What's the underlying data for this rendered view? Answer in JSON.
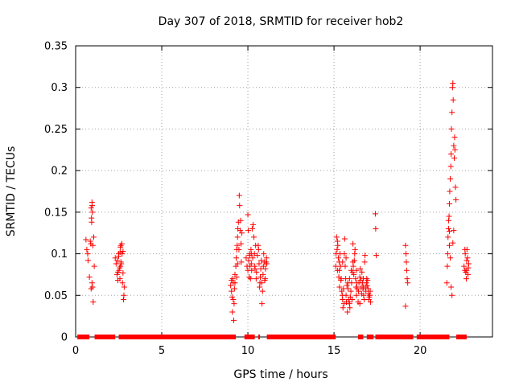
{
  "chart_data": {
    "type": "scatter",
    "title": "Day 307 of 2018, SRMTID for receiver hob2",
    "xlabel": "GPS time / hours",
    "ylabel": "SRMTID / TECUs",
    "xlim": [
      0,
      24.2
    ],
    "ylim": [
      0,
      0.35
    ],
    "grid": true,
    "x_ticks": [
      0,
      5,
      10,
      15,
      20
    ],
    "x_tick_labels": [
      "0",
      "5",
      "10",
      "15",
      "20"
    ],
    "y_ticks": [
      0,
      0.05,
      0.1,
      0.15,
      0.2,
      0.25,
      0.3,
      0.35
    ],
    "y_tick_labels": [
      "0",
      "0.05",
      "0.1",
      "0.15",
      "0.2",
      "0.25",
      "0.3",
      "0.35"
    ],
    "marker_color": "#ff0000",
    "zero_segments": [
      [
        0.1,
        0.8
      ],
      [
        1.1,
        2.3
      ],
      [
        2.5,
        9.3
      ],
      [
        9.8,
        10.4
      ],
      [
        10.6,
        10.7
      ],
      [
        11.1,
        15.1
      ],
      [
        16.4,
        16.7
      ],
      [
        16.9,
        17.3
      ],
      [
        17.4,
        19.6
      ],
      [
        19.8,
        21.7
      ],
      [
        22.1,
        22.7
      ]
    ],
    "series": [
      {
        "name": "SRMTID",
        "points": [
          [
            0.6,
            0.117
          ],
          [
            0.65,
            0.105
          ],
          [
            0.7,
            0.1
          ],
          [
            0.72,
            0.092
          ],
          [
            0.8,
            0.072
          ],
          [
            0.85,
            0.115
          ],
          [
            0.88,
            0.112
          ],
          [
            0.9,
            0.155
          ],
          [
            0.92,
            0.143
          ],
          [
            0.95,
            0.162
          ],
          [
            0.97,
            0.15
          ],
          [
            0.98,
            0.06
          ],
          [
            1.0,
            0.11
          ],
          [
            1.02,
            0.042
          ],
          [
            1.05,
            0.12
          ],
          [
            1.08,
            0.085
          ],
          [
            0.95,
            0.065
          ],
          [
            0.9,
            0.058
          ],
          [
            0.93,
            0.138
          ],
          [
            0.96,
            0.158
          ],
          [
            2.3,
            0.095
          ],
          [
            2.35,
            0.088
          ],
          [
            2.4,
            0.075
          ],
          [
            2.42,
            0.092
          ],
          [
            2.45,
            0.068
          ],
          [
            2.5,
            0.097
          ],
          [
            2.55,
            0.083
          ],
          [
            2.58,
            0.102
          ],
          [
            2.6,
            0.085
          ],
          [
            2.62,
            0.11
          ],
          [
            2.65,
            0.088
          ],
          [
            2.7,
            0.1
          ],
          [
            2.72,
            0.065
          ],
          [
            2.75,
            0.077
          ],
          [
            2.78,
            0.045
          ],
          [
            2.8,
            0.05
          ],
          [
            2.82,
            0.06
          ],
          [
            2.5,
            0.1
          ],
          [
            2.6,
            0.108
          ],
          [
            2.68,
            0.112
          ],
          [
            2.45,
            0.078
          ],
          [
            2.52,
            0.08
          ],
          [
            2.57,
            0.07
          ],
          [
            2.63,
            0.09
          ],
          [
            2.75,
            0.103
          ],
          [
            9.0,
            0.062
          ],
          [
            9.05,
            0.055
          ],
          [
            9.08,
            0.048
          ],
          [
            9.1,
            0.03
          ],
          [
            9.12,
            0.07
          ],
          [
            9.15,
            0.065
          ],
          [
            9.18,
            0.02
          ],
          [
            9.2,
            0.04
          ],
          [
            9.22,
            0.058
          ],
          [
            9.25,
            0.075
          ],
          [
            9.3,
            0.085
          ],
          [
            9.32,
            0.095
          ],
          [
            9.35,
            0.072
          ],
          [
            9.38,
            0.11
          ],
          [
            9.4,
            0.12
          ],
          [
            9.42,
            0.13
          ],
          [
            9.45,
            0.138
          ],
          [
            9.48,
            0.105
          ],
          [
            9.5,
            0.17
          ],
          [
            9.52,
            0.158
          ],
          [
            9.55,
            0.128
          ],
          [
            9.58,
            0.14
          ],
          [
            9.6,
            0.112
          ],
          [
            9.62,
            0.09
          ],
          [
            9.65,
            0.125
          ],
          [
            9.4,
            0.088
          ],
          [
            9.35,
            0.105
          ],
          [
            9.25,
            0.065
          ],
          [
            9.15,
            0.045
          ],
          [
            9.05,
            0.068
          ],
          [
            9.9,
            0.095
          ],
          [
            9.95,
            0.085
          ],
          [
            10.0,
            0.147
          ],
          [
            10.02,
            0.128
          ],
          [
            10.05,
            0.092
          ],
          [
            10.08,
            0.072
          ],
          [
            10.1,
            0.098
          ],
          [
            10.12,
            0.085
          ],
          [
            10.15,
            0.07
          ],
          [
            10.18,
            0.105
          ],
          [
            10.2,
            0.088
          ],
          [
            10.22,
            0.08
          ],
          [
            10.25,
            0.13
          ],
          [
            10.28,
            0.095
          ],
          [
            10.3,
            0.135
          ],
          [
            10.35,
            0.12
          ],
          [
            10.38,
            0.1
          ],
          [
            10.4,
            0.085
          ],
          [
            10.42,
            0.082
          ],
          [
            10.45,
            0.11
          ],
          [
            10.48,
            0.07
          ],
          [
            10.5,
            0.078
          ],
          [
            10.55,
            0.098
          ],
          [
            10.6,
            0.11
          ],
          [
            10.62,
            0.105
          ],
          [
            10.65,
            0.088
          ],
          [
            10.68,
            0.06
          ],
          [
            10.7,
            0.065
          ],
          [
            10.72,
            0.072
          ],
          [
            10.75,
            0.082
          ],
          [
            10.78,
            0.092
          ],
          [
            10.8,
            0.065
          ],
          [
            10.82,
            0.04
          ],
          [
            10.85,
            0.055
          ],
          [
            10.88,
            0.075
          ],
          [
            10.9,
            0.085
          ],
          [
            10.92,
            0.1
          ],
          [
            10.95,
            0.09
          ],
          [
            10.98,
            0.068
          ],
          [
            11.0,
            0.07
          ],
          [
            11.02,
            0.082
          ],
          [
            11.05,
            0.09
          ],
          [
            11.08,
            0.095
          ],
          [
            11.1,
            0.088
          ],
          [
            10.0,
            0.08
          ],
          [
            10.1,
            0.1
          ],
          [
            10.2,
            0.1
          ],
          [
            15.1,
            0.085
          ],
          [
            15.12,
            0.1
          ],
          [
            15.15,
            0.12
          ],
          [
            15.18,
            0.105
          ],
          [
            15.2,
            0.08
          ],
          [
            15.22,
            0.11
          ],
          [
            15.25,
            0.095
          ],
          [
            15.28,
            0.072
          ],
          [
            15.3,
            0.09
          ],
          [
            15.32,
            0.06
          ],
          [
            15.35,
            0.1
          ],
          [
            15.38,
            0.085
          ],
          [
            15.4,
            0.068
          ],
          [
            15.42,
            0.07
          ],
          [
            15.45,
            0.055
          ],
          [
            15.48,
            0.05
          ],
          [
            15.5,
            0.045
          ],
          [
            15.52,
            0.035
          ],
          [
            15.55,
            0.058
          ],
          [
            15.58,
            0.04
          ],
          [
            15.6,
            0.1
          ],
          [
            15.62,
            0.118
          ],
          [
            15.65,
            0.085
          ],
          [
            15.68,
            0.07
          ],
          [
            15.7,
            0.05
          ],
          [
            15.72,
            0.042
          ],
          [
            15.75,
            0.062
          ],
          [
            15.78,
            0.03
          ],
          [
            15.8,
            0.065
          ],
          [
            15.82,
            0.058
          ],
          [
            15.85,
            0.045
          ],
          [
            15.88,
            0.042
          ],
          [
            15.9,
            0.04
          ],
          [
            15.92,
            0.035
          ],
          [
            15.95,
            0.048
          ],
          [
            15.98,
            0.055
          ],
          [
            16.0,
            0.08
          ],
          [
            16.02,
            0.065
          ],
          [
            16.05,
            0.045
          ],
          [
            16.08,
            0.078
          ],
          [
            16.1,
            0.09
          ],
          [
            16.12,
            0.085
          ],
          [
            16.15,
            0.075
          ],
          [
            16.18,
            0.092
          ],
          [
            16.2,
            0.1
          ],
          [
            16.22,
            0.105
          ],
          [
            16.25,
            0.07
          ],
          [
            16.28,
            0.06
          ],
          [
            16.3,
            0.05
          ],
          [
            16.32,
            0.065
          ],
          [
            16.35,
            0.058
          ],
          [
            16.4,
            0.042
          ],
          [
            16.42,
            0.055
          ],
          [
            16.45,
            0.065
          ],
          [
            16.5,
            0.072
          ],
          [
            16.52,
            0.082
          ],
          [
            16.55,
            0.068
          ],
          [
            16.58,
            0.06
          ],
          [
            16.6,
            0.052
          ],
          [
            16.62,
            0.078
          ],
          [
            16.65,
            0.065
          ],
          [
            16.68,
            0.058
          ],
          [
            16.7,
            0.07
          ],
          [
            16.72,
            0.05
          ],
          [
            16.75,
            0.045
          ],
          [
            16.78,
            0.09
          ],
          [
            16.8,
            0.098
          ],
          [
            16.82,
            0.06
          ],
          [
            16.85,
            0.055
          ],
          [
            16.88,
            0.065
          ],
          [
            16.9,
            0.07
          ],
          [
            16.92,
            0.062
          ],
          [
            16.95,
            0.068
          ],
          [
            16.98,
            0.058
          ],
          [
            17.0,
            0.052
          ],
          [
            17.02,
            0.045
          ],
          [
            17.05,
            0.048
          ],
          [
            17.08,
            0.05
          ],
          [
            17.1,
            0.055
          ],
          [
            17.12,
            0.042
          ],
          [
            15.2,
            0.115
          ],
          [
            15.3,
            0.08
          ],
          [
            15.5,
            0.09
          ],
          [
            15.7,
            0.095
          ],
          [
            15.9,
            0.07
          ],
          [
            16.1,
            0.112
          ],
          [
            16.3,
            0.08
          ],
          [
            16.5,
            0.04
          ],
          [
            16.7,
            0.06
          ],
          [
            17.4,
            0.148
          ],
          [
            17.42,
            0.13
          ],
          [
            17.45,
            0.098
          ],
          [
            19.15,
            0.11
          ],
          [
            19.18,
            0.1
          ],
          [
            19.2,
            0.09
          ],
          [
            19.22,
            0.08
          ],
          [
            19.25,
            0.07
          ],
          [
            19.28,
            0.065
          ],
          [
            19.15,
            0.037
          ],
          [
            21.55,
            0.065
          ],
          [
            21.58,
            0.085
          ],
          [
            21.6,
            0.1
          ],
          [
            21.62,
            0.12
          ],
          [
            21.65,
            0.13
          ],
          [
            21.68,
            0.145
          ],
          [
            21.7,
            0.16
          ],
          [
            21.72,
            0.175
          ],
          [
            21.75,
            0.19
          ],
          [
            21.78,
            0.205
          ],
          [
            21.8,
            0.22
          ],
          [
            21.82,
            0.25
          ],
          [
            21.85,
            0.27
          ],
          [
            21.88,
            0.3
          ],
          [
            21.9,
            0.305
          ],
          [
            21.92,
            0.285
          ],
          [
            21.95,
            0.23
          ],
          [
            21.98,
            0.215
          ],
          [
            22.0,
            0.24
          ],
          [
            22.02,
            0.225
          ],
          [
            22.05,
            0.18
          ],
          [
            22.08,
            0.165
          ],
          [
            21.7,
            0.127
          ],
          [
            21.75,
            0.095
          ],
          [
            21.8,
            0.06
          ],
          [
            21.85,
            0.05
          ],
          [
            21.9,
            0.113
          ],
          [
            21.95,
            0.128
          ],
          [
            21.65,
            0.14
          ],
          [
            21.7,
            0.11
          ],
          [
            22.55,
            0.085
          ],
          [
            22.6,
            0.08
          ],
          [
            22.62,
            0.1
          ],
          [
            22.65,
            0.078
          ],
          [
            22.68,
            0.07
          ],
          [
            22.7,
            0.092
          ],
          [
            22.72,
            0.105
          ],
          [
            22.75,
            0.095
          ],
          [
            22.78,
            0.075
          ],
          [
            22.8,
            0.083
          ],
          [
            22.82,
            0.088
          ],
          [
            22.6,
            0.105
          ],
          [
            22.7,
            0.08
          ]
        ]
      }
    ]
  }
}
